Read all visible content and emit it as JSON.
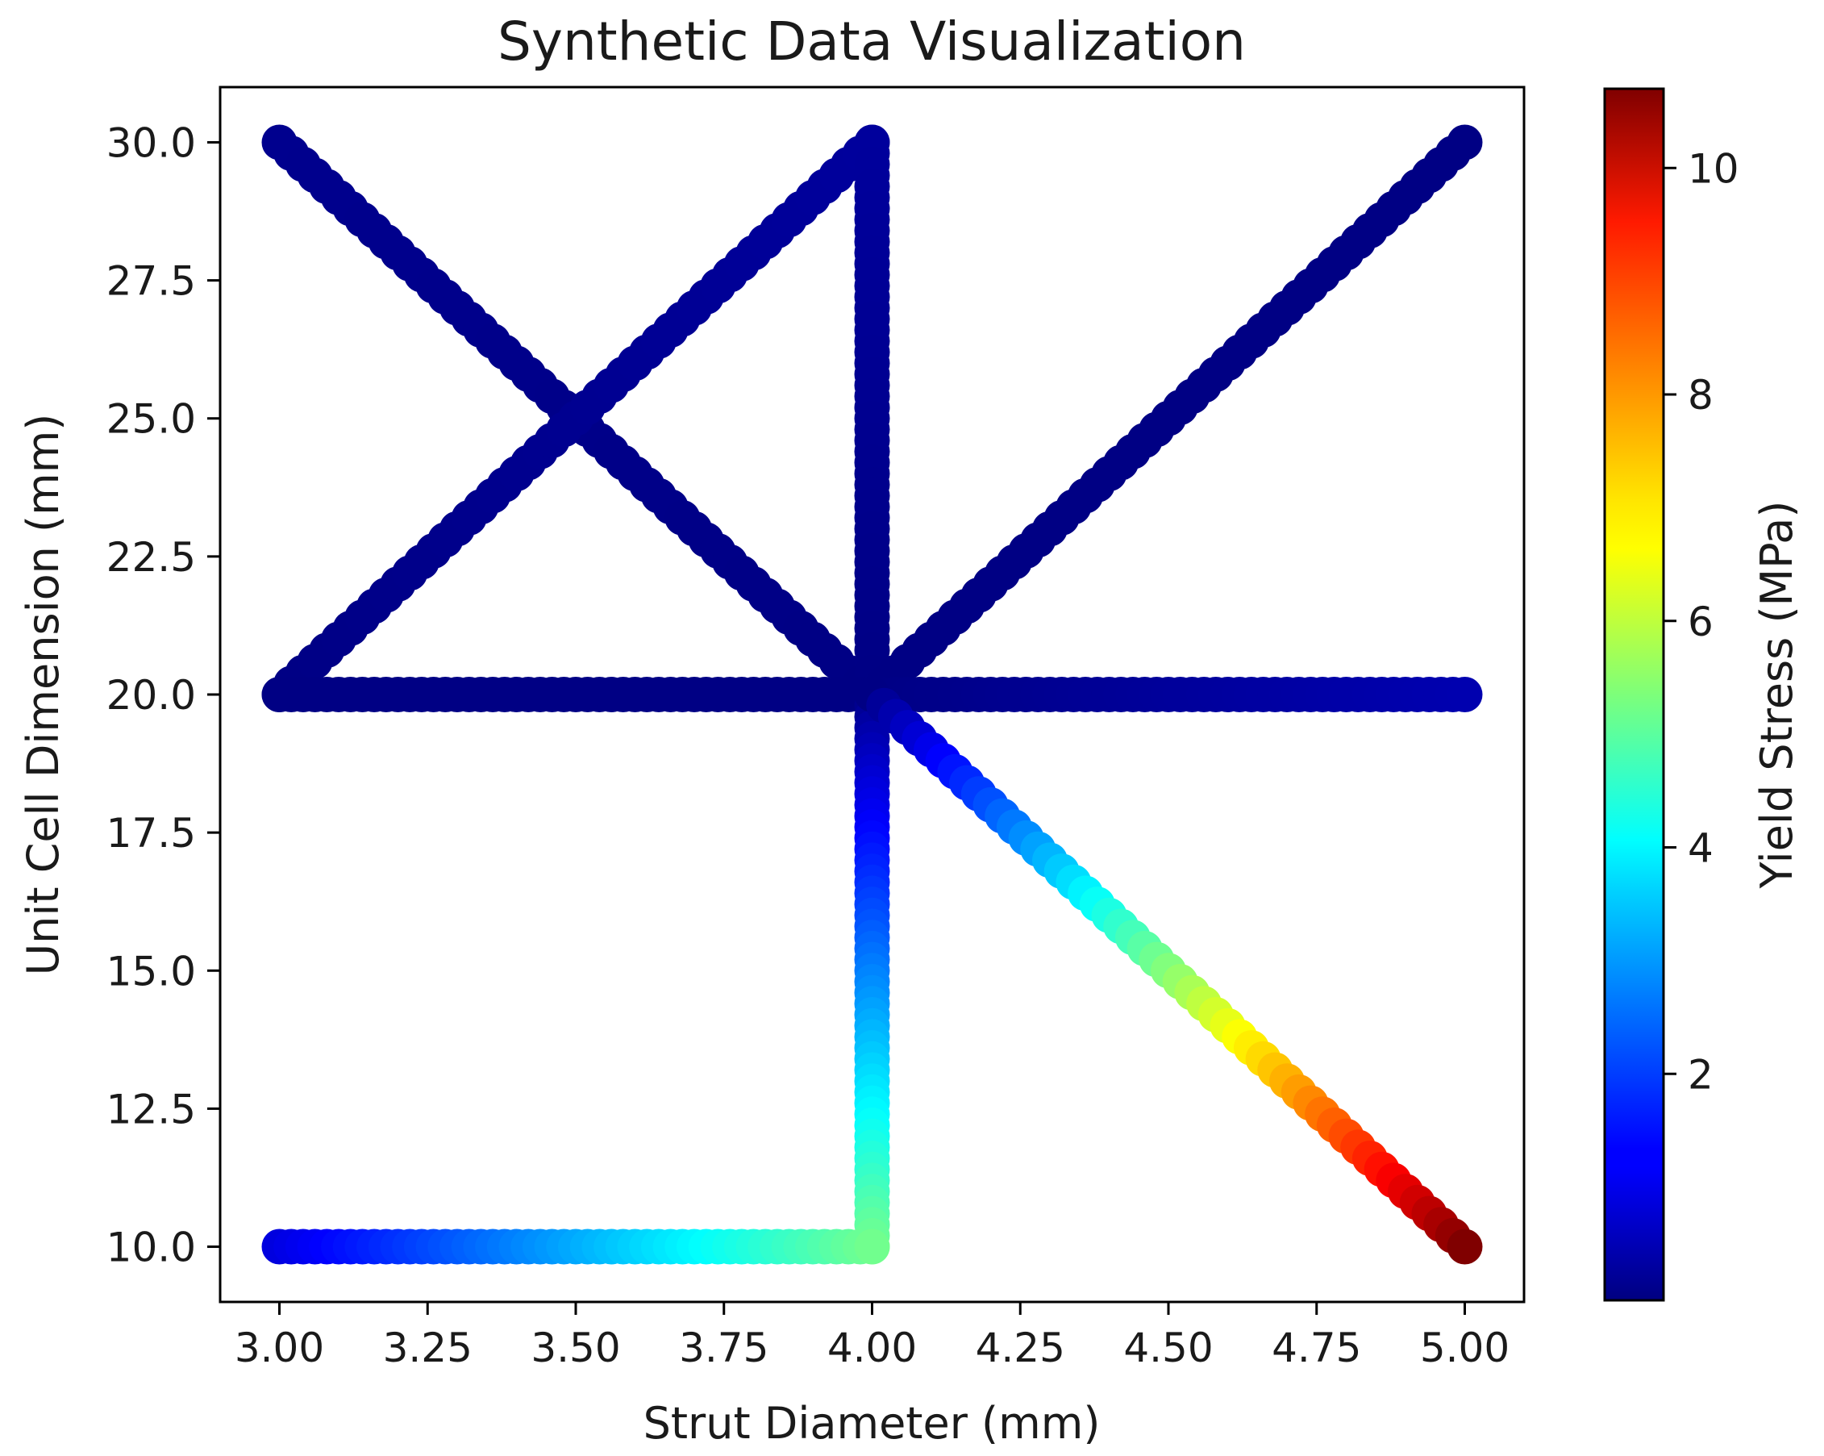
{
  "chart_data": {
    "type": "scatter",
    "title": "Synthetic Data Visualization",
    "xlabel": "Strut Diameter (mm)",
    "ylabel": "Unit Cell Dimension (mm)",
    "xlim": [
      2.9,
      5.1
    ],
    "ylim": [
      9.0,
      31.0
    ],
    "xticks": [
      "3.00",
      "3.25",
      "3.50",
      "3.75",
      "4.00",
      "4.25",
      "4.50",
      "4.75",
      "5.00"
    ],
    "yticks": [
      "10.0",
      "12.5",
      "15.0",
      "17.5",
      "20.0",
      "22.5",
      "25.0",
      "27.5",
      "30.0"
    ],
    "grid": false,
    "colormap": "jet",
    "colorbar": {
      "label": "Yield Stress (MPa)",
      "range": [
        0.0,
        10.7
      ],
      "ticks": [
        "2",
        "4",
        "6",
        "8",
        "10"
      ]
    },
    "series": [
      {
        "x": [
          3.0,
          4.0
        ],
        "y": [
          30.0,
          20.0
        ],
        "c": [
          0.15,
          0.05
        ]
      },
      {
        "x": [
          3.0,
          4.0
        ],
        "y": [
          20.0,
          30.0
        ],
        "c": [
          0.05,
          0.3
        ]
      },
      {
        "x": [
          4.0,
          4.0
        ],
        "y": [
          30.0,
          20.0
        ],
        "c": [
          0.3,
          0.05
        ]
      },
      {
        "x": [
          3.0,
          4.0
        ],
        "y": [
          20.0,
          20.0
        ],
        "c": [
          0.05,
          0.05
        ]
      },
      {
        "x": [
          4.0,
          5.0
        ],
        "y": [
          20.0,
          30.0
        ],
        "c": [
          0.05,
          0.05
        ]
      },
      {
        "x": [
          4.0,
          5.0
        ],
        "y": [
          20.0,
          20.0
        ],
        "c": [
          0.05,
          0.5
        ]
      },
      {
        "x": [
          4.0,
          4.0
        ],
        "y": [
          20.0,
          10.0
        ],
        "c": [
          0.05,
          5.2
        ]
      },
      {
        "x": [
          3.0,
          4.0
        ],
        "y": [
          10.0,
          10.0
        ],
        "c": [
          1.0,
          5.2
        ]
      },
      {
        "x": [
          4.0,
          5.0
        ],
        "y": [
          20.0,
          10.0
        ],
        "c": [
          0.05,
          10.7
        ]
      }
    ]
  }
}
